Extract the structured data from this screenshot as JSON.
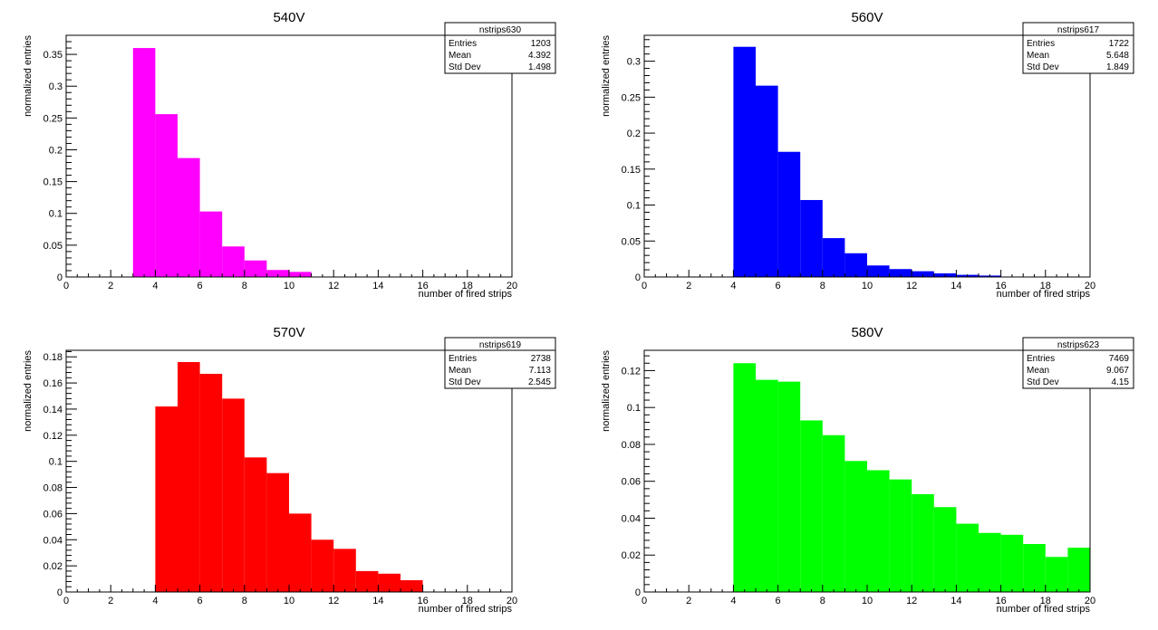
{
  "chart_data": [
    {
      "type": "bar",
      "title": "540V",
      "xlabel": "number of fired strips",
      "ylabel": "normalized entries",
      "xlim": [
        0,
        20
      ],
      "ylim": [
        0,
        0.38
      ],
      "x_ticks": [
        "0",
        "2",
        "4",
        "6",
        "8",
        "10",
        "12",
        "14",
        "16",
        "18",
        "20"
      ],
      "y_ticks": [
        "0",
        "0.05",
        "0.1",
        "0.15",
        "0.2",
        "0.25",
        "0.3",
        "0.35"
      ],
      "color": "#ff00ff",
      "bins": [
        3,
        4,
        5,
        6,
        7,
        8,
        9,
        10
      ],
      "values": [
        0.36,
        0.256,
        0.187,
        0.103,
        0.048,
        0.026,
        0.011,
        0.008
      ],
      "stats": {
        "name": "nstrips630",
        "rows": [
          {
            "label": "Entries",
            "value": "1203"
          },
          {
            "label": "Mean",
            "value": "4.392"
          },
          {
            "label": "Std Dev",
            "value": "1.498"
          }
        ]
      }
    },
    {
      "type": "bar",
      "title": "560V",
      "xlabel": "number of fired strips",
      "ylabel": "normalized entries",
      "xlim": [
        0,
        20
      ],
      "ylim": [
        0,
        0.336
      ],
      "x_ticks": [
        "0",
        "2",
        "4",
        "6",
        "8",
        "10",
        "12",
        "14",
        "16",
        "18",
        "20"
      ],
      "y_ticks": [
        "0",
        "0.05",
        "0.1",
        "0.15",
        "0.2",
        "0.25",
        "0.3"
      ],
      "color": "#0000ff",
      "bins": [
        4,
        5,
        6,
        7,
        8,
        9,
        10,
        11,
        12,
        13,
        14,
        15
      ],
      "values": [
        0.32,
        0.266,
        0.174,
        0.107,
        0.054,
        0.033,
        0.016,
        0.011,
        0.008,
        0.005,
        0.003,
        0.002
      ],
      "stats": {
        "name": "nstrips617",
        "rows": [
          {
            "label": "Entries",
            "value": "1722"
          },
          {
            "label": "Mean",
            "value": "5.648"
          },
          {
            "label": "Std Dev",
            "value": "1.849"
          }
        ]
      }
    },
    {
      "type": "bar",
      "title": "570V",
      "xlabel": "number of fired strips",
      "ylabel": "normalized entries",
      "xlim": [
        0,
        20
      ],
      "ylim": [
        0,
        0.185
      ],
      "x_ticks": [
        "0",
        "2",
        "4",
        "6",
        "8",
        "10",
        "12",
        "14",
        "16",
        "18",
        "20"
      ],
      "y_ticks": [
        "0",
        "0.02",
        "0.04",
        "0.06",
        "0.08",
        "0.1",
        "0.12",
        "0.14",
        "0.16",
        "0.18"
      ],
      "color": "#ff0000",
      "bins": [
        4,
        5,
        6,
        7,
        8,
        9,
        10,
        11,
        12,
        13,
        14,
        15
      ],
      "values": [
        0.142,
        0.176,
        0.167,
        0.148,
        0.103,
        0.091,
        0.06,
        0.04,
        0.033,
        0.016,
        0.014,
        0.009
      ],
      "stats": {
        "name": "nstrips619",
        "rows": [
          {
            "label": "Entries",
            "value": "2738"
          },
          {
            "label": "Mean",
            "value": "7.113"
          },
          {
            "label": "Std Dev",
            "value": "2.545"
          }
        ]
      }
    },
    {
      "type": "bar",
      "title": "580V",
      "xlabel": "number of fired strips",
      "ylabel": "normalized entries",
      "xlim": [
        0,
        20
      ],
      "ylim": [
        0,
        0.131
      ],
      "x_ticks": [
        "0",
        "2",
        "4",
        "6",
        "8",
        "10",
        "12",
        "14",
        "16",
        "18",
        "20"
      ],
      "y_ticks": [
        "0",
        "0.02",
        "0.04",
        "0.06",
        "0.08",
        "0.1",
        "0.12"
      ],
      "color": "#00ff00",
      "bins": [
        4,
        5,
        6,
        7,
        8,
        9,
        10,
        11,
        12,
        13,
        14,
        15,
        16,
        17,
        18,
        19
      ],
      "values": [
        0.124,
        0.115,
        0.114,
        0.093,
        0.085,
        0.071,
        0.066,
        0.061,
        0.053,
        0.046,
        0.037,
        0.032,
        0.031,
        0.026,
        0.019,
        0.024
      ],
      "stats": {
        "name": "nstrips623",
        "rows": [
          {
            "label": "Entries",
            "value": "7469"
          },
          {
            "label": "Mean",
            "value": "9.067"
          },
          {
            "label": "Std Dev",
            "value": "4.15"
          }
        ]
      }
    }
  ]
}
